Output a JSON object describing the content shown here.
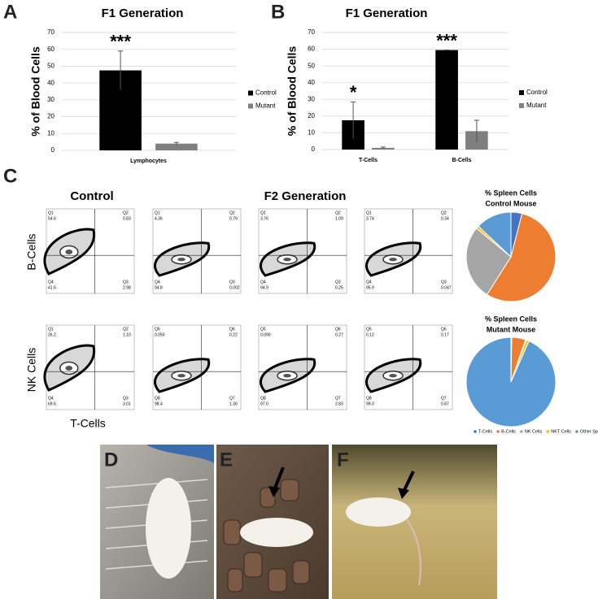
{
  "panel_labels": [
    "A",
    "B",
    "C",
    "D",
    "E",
    "F"
  ],
  "chart_data": [
    {
      "type": "bar",
      "title": "F1 Generation",
      "y_label": "% of Blood Cells",
      "categories": [
        "Lymphocytes"
      ],
      "series": [
        {
          "name": "Control",
          "color": "#000000",
          "values": [
            47.5
          ],
          "errors": [
            11.5
          ]
        },
        {
          "name": "Mutant",
          "color": "#7f7f7f",
          "values": [
            4
          ],
          "errors": [
            0.7
          ]
        }
      ],
      "annotations": [
        "***"
      ],
      "ylim": [
        0,
        70
      ],
      "yticks": [
        0,
        10,
        20,
        30,
        40,
        50,
        60,
        70
      ],
      "grid": true,
      "legend": "right"
    },
    {
      "type": "bar",
      "title": "F1 Generation",
      "y_label": "% of Blood Cells",
      "categories": [
        "T-Cells",
        "B-Cells"
      ],
      "series": [
        {
          "name": "Control",
          "color": "#000000",
          "values": [
            17.5,
            59.5
          ],
          "errors": [
            11,
            0
          ]
        },
        {
          "name": "Mutant",
          "color": "#7f7f7f",
          "values": [
            1,
            11
          ],
          "errors": [
            0.5,
            6.5
          ]
        }
      ],
      "annotations": [
        "*",
        "***"
      ],
      "ylim": [
        0,
        70
      ],
      "yticks": [
        0,
        10,
        20,
        30,
        40,
        50,
        60,
        70
      ],
      "grid": true,
      "legend": "right"
    },
    {
      "type": "pie",
      "title": "% Spleen Cells",
      "categories": [
        "T-Cells",
        "B-Cells",
        "NK Cells",
        "NKT Cells",
        "Other Spleen Cells"
      ],
      "colors": [
        "#4472c4",
        "#ed7d31",
        "#a5a5a5",
        "#ffc000",
        "#5b9bd5"
      ],
      "series": [
        {
          "name": "Control Mouse",
          "values": [
            4,
            55,
            27,
            1,
            13
          ]
        },
        {
          "name": "Mutant Mouse",
          "values": [
            0.3,
            5,
            0.3,
            1,
            93.4
          ]
        }
      ],
      "legend": "bottom"
    }
  ],
  "flow": {
    "headings": [
      "Control",
      "F2 Generation"
    ],
    "row_labels": [
      "B-Cells",
      "NK Cells"
    ],
    "x_label": "T-Cells",
    "rows": [
      [
        [
          {
            "name": "Q1",
            "value": "54.6"
          },
          {
            "name": "Q2",
            "value": "0.83"
          },
          {
            "name": "Q3",
            "value": "2.98"
          },
          {
            "name": "Q4",
            "value": "41.6"
          }
        ],
        [
          {
            "name": "Q1",
            "value": "4.36"
          },
          {
            "name": "Q2",
            "value": "0.79"
          },
          {
            "name": "Q3",
            "value": "0.002"
          },
          {
            "name": "Q4",
            "value": "94.8"
          }
        ],
        [
          {
            "name": "Q1",
            "value": "3.76"
          },
          {
            "name": "Q2",
            "value": "1.09"
          },
          {
            "name": "Q3",
            "value": "0.25"
          },
          {
            "name": "Q4",
            "value": "94.9"
          }
        ],
        [
          {
            "name": "Q1",
            "value": "3.74"
          },
          {
            "name": "Q2",
            "value": "0.34"
          },
          {
            "name": "Q3",
            "value": "0.047"
          },
          {
            "name": "Q4",
            "value": "95.9"
          }
        ]
      ],
      [
        [
          {
            "name": "Q1",
            "value": "26.2"
          },
          {
            "name": "Q2",
            "value": "1.10"
          },
          {
            "name": "Q3",
            "value": "3.01"
          },
          {
            "name": "Q4",
            "value": "69.6"
          }
        ],
        [
          {
            "name": "Q5",
            "value": "0.050"
          },
          {
            "name": "Q6",
            "value": "0.22"
          },
          {
            "name": "Q7",
            "value": "1.30"
          },
          {
            "name": "Q8",
            "value": "98.4"
          }
        ],
        [
          {
            "name": "Q5",
            "value": "0.090"
          },
          {
            "name": "Q6",
            "value": "0.27"
          },
          {
            "name": "Q7",
            "value": "2.83"
          },
          {
            "name": "Q8",
            "value": "97.0"
          }
        ],
        [
          {
            "name": "Q5",
            "value": "0.12"
          },
          {
            "name": "Q6",
            "value": "0.17"
          },
          {
            "name": "Q7",
            "value": "0.87"
          },
          {
            "name": "Q8",
            "value": "99.0"
          }
        ]
      ]
    ]
  }
}
